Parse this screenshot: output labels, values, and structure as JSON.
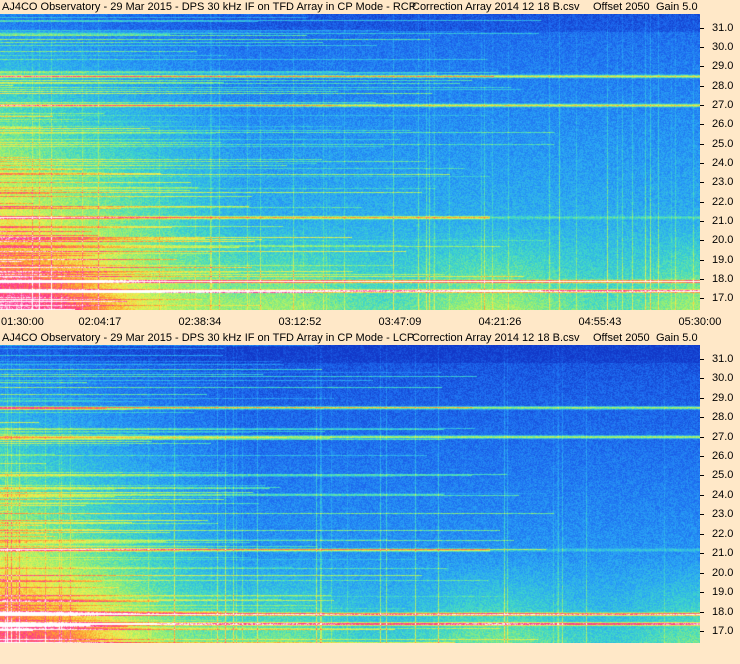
{
  "panels": [
    {
      "id": "rcp",
      "title": {
        "main": "AJ4CO Observatory - 29 Mar 2015 - DPS 30 kHz IF on TFD Array in CP Mode - RCP",
        "correction": "Correction Array 2014 12 18 B.csv",
        "offset": "Offset 2050",
        "gain": "Gain 5.0"
      }
    },
    {
      "id": "lcp",
      "title": {
        "main": "AJ4CO Observatory - 29 Mar 2015 - DPS 30 kHz IF on TFD Array in CP Mode - LCP",
        "correction": "Correction Array 2014 12 18 B.csv",
        "offset": "Offset 2050",
        "gain": "Gain 5.0"
      }
    }
  ],
  "chart_data": [
    {
      "type": "heatmap",
      "title": "AJ4CO Observatory - 29 Mar 2015 - DPS 30 kHz IF on TFD Array in CP Mode - RCP",
      "x_tick_labels": [
        "01:30:00",
        "02:04:17",
        "02:38:34",
        "03:12:52",
        "03:47:09",
        "04:21:26",
        "04:55:43",
        "05:30:00"
      ],
      "y_tick_labels": [
        "31.0",
        "30.0",
        "29.0",
        "28.0",
        "27.0",
        "26.0",
        "25.0",
        "24.0",
        "23.0",
        "22.0",
        "21.0",
        "20.0",
        "19.0",
        "18.0",
        "17.0"
      ],
      "xlim": [
        "01:30:00",
        "05:30:00"
      ],
      "ylim": [
        16.4,
        31.7
      ],
      "colormap": [
        "#1238c8",
        "#1e6cf0",
        "#2aa6f5",
        "#40d8c8",
        "#9af070",
        "#f0f050",
        "#ff9a30",
        "#ff3090",
        "#ffffff"
      ],
      "bright_bands_mhz": [
        28.5,
        27.0,
        21.2,
        17.9,
        17.4
      ],
      "storm_burst_time_range": [
        "01:30:00",
        "02:30:00"
      ]
    },
    {
      "type": "heatmap",
      "title": "AJ4CO Observatory - 29 Mar 2015 - DPS 30 kHz IF on TFD Array in CP Mode - LCP",
      "x_tick_labels": [],
      "y_tick_labels": [
        "31.0",
        "30.0",
        "29.0",
        "28.0",
        "27.0",
        "26.0",
        "25.0",
        "24.0",
        "23.0",
        "22.0",
        "21.0",
        "20.0",
        "19.0",
        "18.0",
        "17.0"
      ],
      "xlim": [
        "01:30:00",
        "05:30:00"
      ],
      "ylim": [
        16.4,
        31.7
      ],
      "colormap": [
        "#1238c8",
        "#1e6cf0",
        "#2aa6f5",
        "#40d8c8",
        "#9af070",
        "#f0f050",
        "#ff9a30",
        "#ff3090",
        "#ffffff"
      ],
      "bright_bands_mhz": [
        28.5,
        27.0,
        21.2,
        17.9,
        17.4
      ],
      "storm_burst_time_range": [
        "01:30:00",
        "02:30:00"
      ]
    }
  ]
}
